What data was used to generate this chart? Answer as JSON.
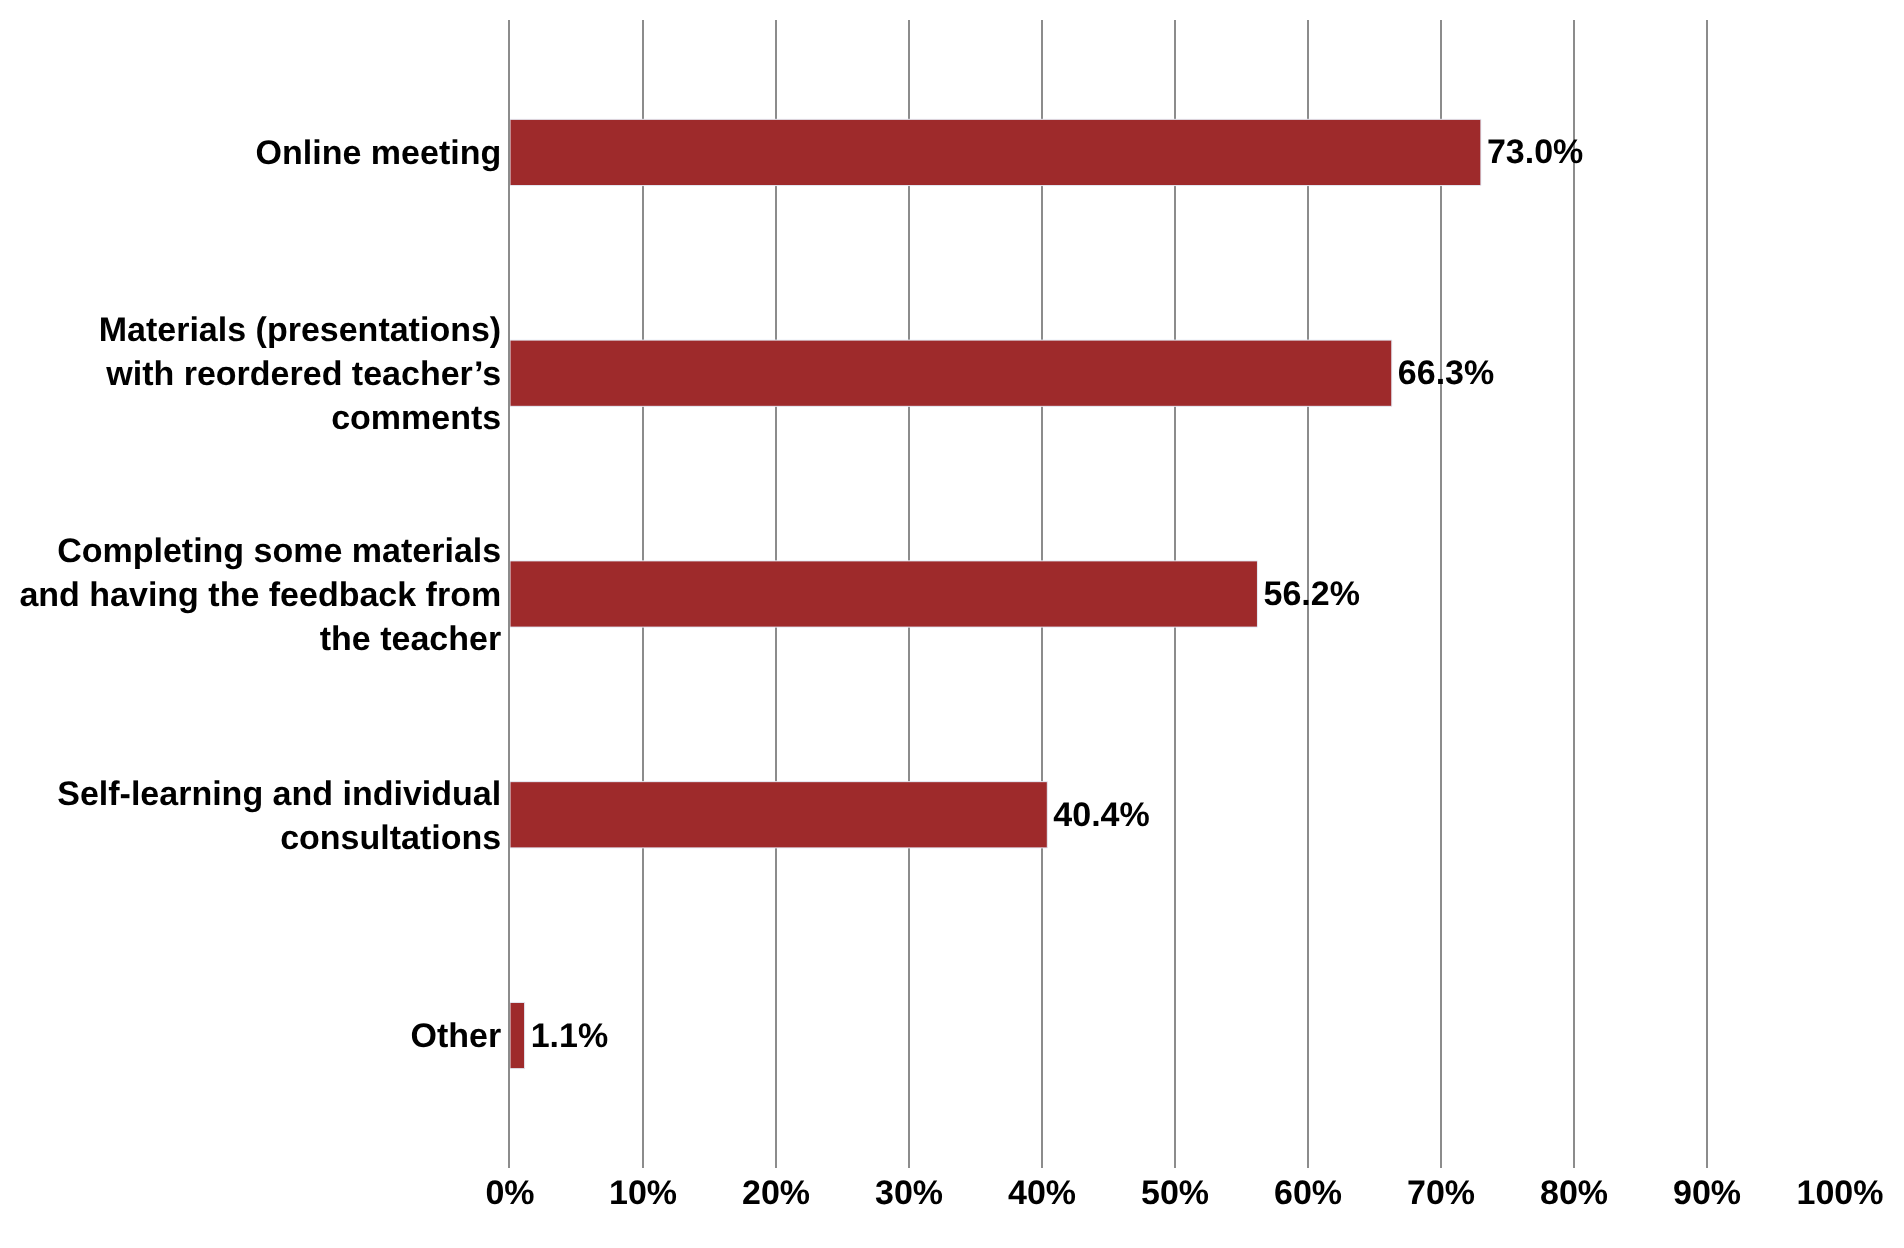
{
  "chart_data": {
    "type": "bar",
    "orientation": "horizontal",
    "categories": [
      "Online meeting",
      "Materials (presentations) with reordered teacher’s comments",
      "Completing some materials and having the feedback from the teacher",
      "Self-learning and individual consultations",
      "Other"
    ],
    "values": [
      73.0,
      66.3,
      56.2,
      40.4,
      1.1
    ],
    "value_labels": [
      "73.0%",
      "66.3%",
      "56.2%",
      "40.4%",
      "1.1%"
    ],
    "color": "#9e2a2b",
    "xlim": [
      0,
      100
    ],
    "xticks": [
      {
        "value": 0,
        "label": "0%"
      },
      {
        "value": 10,
        "label": "10%"
      },
      {
        "value": 20,
        "label": "20%"
      },
      {
        "value": 30,
        "label": "30%"
      },
      {
        "value": 40,
        "label": "40%"
      },
      {
        "value": 50,
        "label": "50%"
      },
      {
        "value": 60,
        "label": "60%"
      },
      {
        "value": 70,
        "label": "70%"
      },
      {
        "value": 80,
        "label": "80%"
      },
      {
        "value": 90,
        "label": "90%"
      },
      {
        "value": 100,
        "label": "100%"
      }
    ],
    "grid": "x",
    "legend": false
  }
}
